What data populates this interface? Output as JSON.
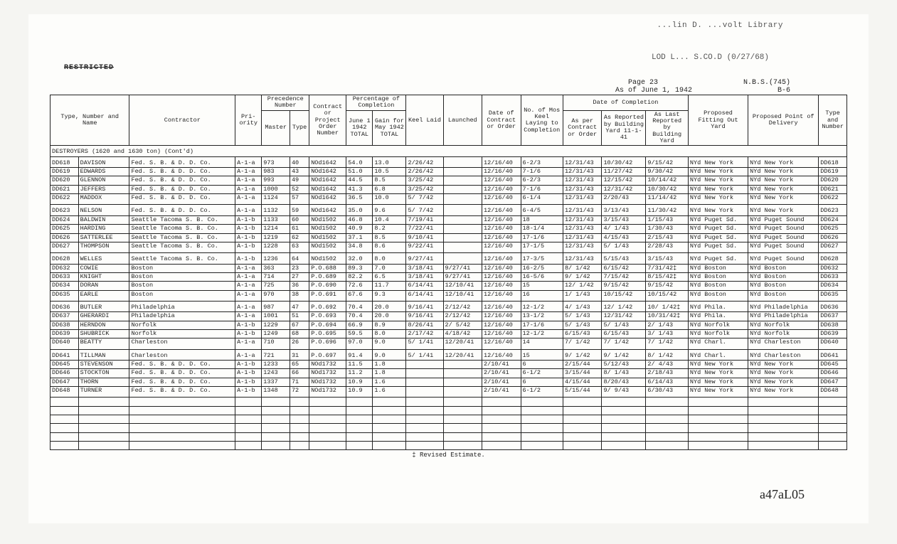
{
  "lib_stamp": "...lin D. ...volt Library",
  "lib_stamp2": "LOD L... S.CO.D (0/27/68)",
  "restricted": "RESTRICTED",
  "hdr": {
    "page": "Page 23",
    "nbs": "N.B.S.(745)",
    "asof": "As of June 1, 1942",
    "b6": "B-6"
  },
  "cols": {
    "type_num_name": "Type, Number and Name",
    "contractor": "Contractor",
    "priority": "Pri-\nority",
    "prec": "Precedence\nNumber",
    "master": "Master",
    "type": "Type",
    "contract": "Contract\nor\nProject\nOrder\nNumber",
    "pct": "Percentage\nof Completion",
    "pct_jun": "June 1\n1942\nTOTAL",
    "pct_gain": "Gain for\nMay 1942\nTOTAL",
    "keel": "Keel\nLaid",
    "launched": "Launched",
    "date_contract": "Date of\nContract\nor Order",
    "mos": "No. of Mos\nKeel Laying\nto\nCompletion",
    "doc": "Date of Completion",
    "doc1": "As per\nContract\nor\nOrder",
    "doc2": "As Reported\nby Building\nYard\n11-1-41",
    "doc3": "As Last\nReported by\nBuilding\nYard",
    "fit": "Proposed\nFitting\nOut\nYard",
    "pod": "Proposed\nPoint\nof\nDelivery",
    "tn": "Type\nand\nNumber"
  },
  "section": "DESTROYERS (1620 and 1630 ton) (Cont'd)",
  "rows": [
    [
      "DD618",
      "DAVISON",
      "Fed. S. B. & D. D. Co.",
      "A-1-a",
      "973",
      "40",
      "NOd1642",
      "54.0",
      "13.0",
      "2/26/42",
      "",
      "12/16/40",
      "6-2/3",
      "12/31/43",
      "10/30/42",
      "9/15/42",
      "NYd New York",
      "NYd New York",
      "DD618",
      "gs"
    ],
    [
      "DD619",
      "EDWARDS",
      "Fed. S. B. & D. D. Co.",
      "A-1-a",
      "983",
      "43",
      "NOd1642",
      "51.0",
      "10.5",
      "2/26/42",
      "",
      "12/16/40",
      "7-1/6",
      "12/31/43",
      "11/27/42",
      "9/30/42",
      "NYd New York",
      "NYd New York",
      "DD619",
      ""
    ],
    [
      "DD620",
      "GLENNON",
      "Fed. S. B. & D. D. Co.",
      "A-1-a",
      "993",
      "49",
      "NOd1642",
      "44.5",
      "8.5",
      "3/25/42",
      "",
      "12/16/40",
      "6-2/3",
      "12/31/43",
      "12/15/42",
      "10/14/42",
      "NYd New York",
      "NYd New York",
      "DD620",
      ""
    ],
    [
      "DD621",
      "JEFFERS",
      "Fed. S. B. & D. D. Co.",
      "A-1-a",
      "1000",
      "52",
      "NOd1642",
      "41.3",
      "6.8",
      "3/25/42",
      "",
      "12/16/40",
      "7-1/6",
      "12/31/43",
      "12/31/42",
      "10/30/42",
      "NYd New York",
      "NYd New York",
      "DD621",
      ""
    ],
    [
      "DD622",
      "MADDOX",
      "Fed. S. B. & D. D. Co.",
      "A-1-a",
      "1124",
      "57",
      "NOd1642",
      "36.5",
      "10.0",
      "5/ 7/42",
      "",
      "12/16/40",
      "6-1/4",
      "12/31/43",
      "2/20/43",
      "11/14/42",
      "NYd New York",
      "NYd New York",
      "DD622",
      "ge"
    ],
    [
      "DD623",
      "NELSON",
      "Fed. S. B. & D. D. Co.",
      "A-1-a",
      "1132",
      "59",
      "NOd1642",
      "35.0",
      "9.6",
      "5/ 7/42",
      "",
      "12/16/40",
      "6-4/5",
      "12/31/43",
      "3/13/43",
      "11/30/42",
      "NYd New York",
      "NYd New York",
      "DD623",
      "gs"
    ],
    [
      "DD624",
      "BALDWIN",
      "Seattle Tacoma S. B. Co.",
      "A-1-b",
      "1133",
      "60",
      "NOd1502",
      "46.8",
      "10.4",
      "7/19/41",
      "",
      "12/16/40",
      "18",
      "12/31/43",
      "3/15/43",
      "1/15/43",
      "NYd Puget Sd.",
      "NYd Puget Sound",
      "DD624",
      ""
    ],
    [
      "DD625",
      "HARDING",
      "Seattle Tacoma S. B. Co.",
      "A-1-b",
      "1214",
      "61",
      "NOd1502",
      "40.9",
      "8.2",
      "7/22/41",
      "",
      "12/16/40",
      "18-1/4",
      "12/31/43",
      "4/ 1/43",
      "1/30/43",
      "NYd Puget Sd.",
      "NYd Puget Sound",
      "DD625",
      ""
    ],
    [
      "DD626",
      "SATTERLEE",
      "Seattle Tacoma S. B. Co.",
      "A-1-b",
      "1219",
      "62",
      "NOd1502",
      "37.1",
      "8.5",
      "9/10/41",
      "",
      "12/16/40",
      "17-1/6",
      "12/31/43",
      "4/15/43",
      "2/15/43",
      "NYd Puget Sd.",
      "NYd Puget Sound",
      "DD626",
      ""
    ],
    [
      "DD627",
      "THOMPSON",
      "Seattle Tacoma S. B. Co.",
      "A-1-b",
      "1228",
      "63",
      "NOd1502",
      "34.8",
      "8.6",
      "9/22/41",
      "",
      "12/16/40",
      "17-1/5",
      "12/31/43",
      "5/ 1/43",
      "2/28/43",
      "NYd Puget Sd.",
      "NYd Puget Sound",
      "DD627",
      "ge"
    ],
    [
      "DD628",
      "WELLES",
      "Seattle Tacoma S. B. Co.",
      "A-1-b",
      "1236",
      "64",
      "NOd1502",
      "32.0",
      "8.0",
      "9/27/41",
      "",
      "12/16/40",
      "17-3/5",
      "12/31/43",
      "5/15/43",
      "3/15/43",
      "NYd Puget Sd.",
      "NYd Puget Sound",
      "DD628",
      "gs"
    ],
    [
      "DD632",
      "COWIE",
      "Boston",
      "A-1-a",
      "363",
      "23",
      "P.O.688",
      "89.3",
      "7.0",
      "3/18/41",
      "9/27/41",
      "12/16/40",
      "16-2/5",
      "8/ 1/42",
      "6/15/42",
      "7/31/42‡",
      "NYd Boston",
      "NYd Boston",
      "DD632",
      ""
    ],
    [
      "DD633",
      "KNIGHT",
      "Boston",
      "A-1-a",
      "714",
      "27",
      "P.O.689",
      "82.2",
      "6.5",
      "3/18/41",
      "9/27/41",
      "12/16/40",
      "16-5/6",
      "9/ 1/42",
      "7/15/42",
      "8/15/42‡",
      "NYd Boston",
      "NYd Boston",
      "DD633",
      ""
    ],
    [
      "DD634",
      "DORAN",
      "Boston",
      "A-1-a",
      "725",
      "36",
      "P.O.690",
      "72.6",
      "11.7",
      "6/14/41",
      "12/10/41",
      "12/16/40",
      "15",
      "12/ 1/42",
      "9/15/42",
      "9/15/42",
      "NYd Boston",
      "NYd Boston",
      "DD634",
      ""
    ],
    [
      "DD635",
      "EARLE",
      "Boston",
      "A-1-a",
      "970",
      "38",
      "P.O.691",
      "67.6",
      "9.3",
      "6/14/41",
      "12/10/41",
      "12/16/40",
      "16",
      "1/ 1/43",
      "10/15/42",
      "10/15/42",
      "NYd Boston",
      "NYd Boston",
      "DD635",
      "ge"
    ],
    [
      "DD636",
      "BUTLER",
      "Philadelphia",
      "A-1-a",
      "987",
      "47",
      "P.O.692",
      "70.4",
      "20.0",
      "9/16/41",
      "2/12/42",
      "12/16/40",
      "12-1/2",
      "4/ 1/43",
      "12/ 1/42",
      "10/ 1/42‡",
      "NYd Phila.",
      "NYd Philadelphia",
      "DD636",
      "gs"
    ],
    [
      "DD637",
      "GHERARDI",
      "Philadelphia",
      "A-1-a",
      "1001",
      "51",
      "P.O.693",
      "70.4",
      "20.0",
      "9/16/41",
      "2/12/42",
      "12/16/40",
      "13-1/2",
      "5/ 1/43",
      "12/31/42",
      "10/31/42‡",
      "NYd Phila.",
      "NYd Philadelphia",
      "DD637",
      ""
    ],
    [
      "DD638",
      "HERNDON",
      "Norfolk",
      "A-1-b",
      "1229",
      "67",
      "P.O.694",
      "66.9",
      "8.9",
      "8/26/41",
      "2/ 5/42",
      "12/16/40",
      "17-1/6",
      "5/ 1/43",
      "5/ 1/43",
      "2/ 1/43",
      "NYd Norfolk",
      "NYd Norfolk",
      "DD638",
      ""
    ],
    [
      "DD639",
      "SHUBRICK",
      "Norfolk",
      "A-1-b",
      "1249",
      "68",
      "P.O.695",
      "59.5",
      "8.0",
      "2/17/42",
      "4/18/42",
      "12/16/40",
      "12-1/2",
      "6/15/43",
      "6/15/43",
      "3/ 1/43",
      "NYd Norfolk",
      "NYd Norfolk",
      "DD639",
      ""
    ],
    [
      "DD640",
      "BEATTY",
      "Charleston",
      "A-1-a",
      "710",
      "26",
      "P.O.696",
      "97.0",
      "9.0",
      "5/ 1/41",
      "12/20/41",
      "12/16/40",
      "14",
      "7/ 1/42",
      "7/ 1/42",
      "7/ 1/42",
      "NYd Charl.",
      "NYd Charleston",
      "DD640",
      "ge"
    ],
    [
      "DD641",
      "TILLMAN",
      "Charleston",
      "A-1-a",
      "721",
      "31",
      "P.O.697",
      "91.4",
      "9.0",
      "5/ 1/41",
      "12/20/41",
      "12/16/40",
      "15",
      "9/ 1/42",
      "9/ 1/42",
      "8/ 1/42",
      "NYd Charl.",
      "NYd Charleston",
      "DD641",
      "gs"
    ],
    [
      "DD645",
      "STEVENSON",
      "Fed. S. B. & D. D. Co.",
      "A-1-b",
      "1233",
      "65",
      "NOd1732",
      "11.5",
      "1.8",
      "",
      "",
      "2/10/41",
      "6",
      "2/15/44",
      "5/12/43",
      "2/ 4/43",
      "NYd New York",
      "NYd New York",
      "DD645",
      ""
    ],
    [
      "DD646",
      "STOCKTON",
      "Fed. S. B. & D. D. Co.",
      "A-1-b",
      "1243",
      "66",
      "NOd1732",
      "11.2",
      "1.8",
      "",
      "",
      "2/10/41",
      "6-1/2",
      "3/15/44",
      "8/ 1/43",
      "2/18/43",
      "NYd New York",
      "NYd New York",
      "DD646",
      ""
    ],
    [
      "DD647",
      "THORN",
      "Fed. S. B. & D. D. Co.",
      "A-1-b",
      "1337",
      "71",
      "NOd1732",
      "10.9",
      "1.6",
      "",
      "",
      "2/10/41",
      "6",
      "4/15/44",
      "8/20/43",
      "6/14/43",
      "NYd New York",
      "NYd New York",
      "DD647",
      ""
    ],
    [
      "DD648",
      "TURNER",
      "Fed. S. B. & D. D. Co.",
      "A-1-b",
      "1348",
      "72",
      "NOd1732",
      "10.9",
      "1.6",
      "",
      "",
      "2/10/41",
      "6-1/2",
      "5/15/44",
      "9/ 9/43",
      "6/30/43",
      "NYd New York",
      "NYd New York",
      "DD648",
      "ge last"
    ]
  ],
  "footnote": "‡ Revised Estimate.",
  "docnum": "a47aL05"
}
